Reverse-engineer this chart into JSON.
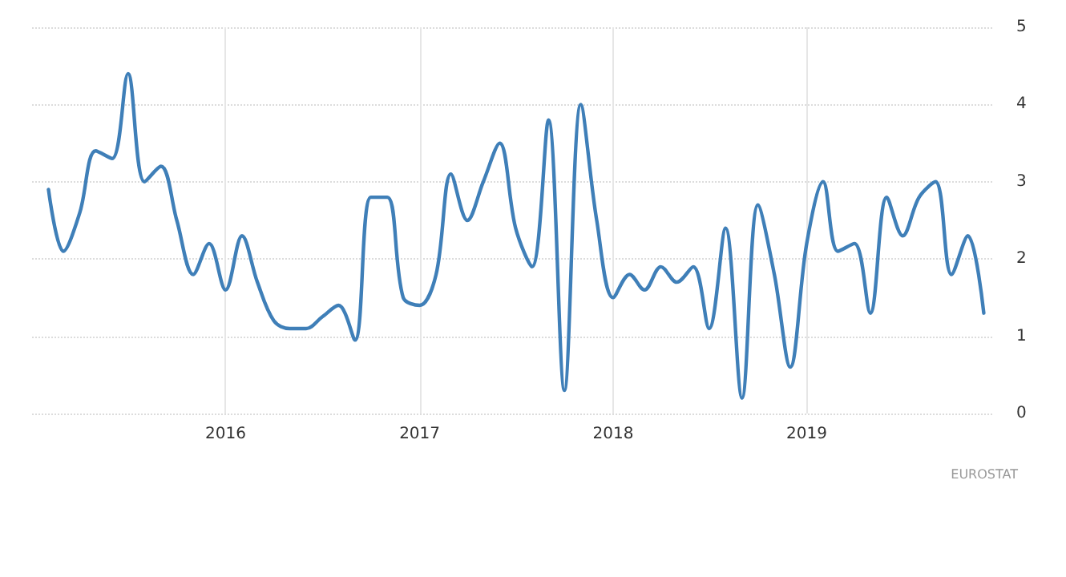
{
  "chart_data": {
    "type": "line",
    "x": [
      "2015-02",
      "2015-03",
      "2015-04",
      "2015-05",
      "2015-06",
      "2015-07",
      "2015-08",
      "2015-09",
      "2015-10",
      "2015-11",
      "2015-12",
      "2016-01",
      "2016-02",
      "2016-03",
      "2016-04",
      "2016-05",
      "2016-06",
      "2016-07",
      "2016-08",
      "2016-09",
      "2016-10",
      "2016-11",
      "2016-12",
      "2017-01",
      "2017-02",
      "2017-03",
      "2017-04",
      "2017-05",
      "2017-06",
      "2017-07",
      "2017-08",
      "2017-09",
      "2017-10",
      "2017-11",
      "2017-12",
      "2018-01",
      "2018-02",
      "2018-03",
      "2018-04",
      "2018-05",
      "2018-06",
      "2018-07",
      "2018-08",
      "2018-09",
      "2018-10",
      "2018-11",
      "2018-12",
      "2019-01",
      "2019-02",
      "2019-03",
      "2019-04",
      "2019-05",
      "2019-06",
      "2019-07",
      "2019-08",
      "2019-09",
      "2019-10",
      "2019-11",
      "2019-12"
    ],
    "series": [
      {
        "color": "#3f7fb8",
        "values": [
          2.9,
          2.1,
          2.6,
          3.4,
          3.3,
          4.4,
          3.0,
          3.2,
          2.5,
          1.8,
          2.2,
          1.6,
          2.3,
          1.7,
          1.2,
          1.1,
          1.1,
          1.25,
          1.4,
          0.95,
          2.8,
          2.8,
          1.5,
          1.4,
          1.8,
          3.1,
          2.5,
          3.0,
          3.5,
          2.4,
          1.9,
          3.8,
          0.3,
          4.0,
          2.5,
          1.5,
          1.8,
          1.6,
          1.9,
          1.7,
          1.9,
          1.1,
          2.4,
          0.2,
          2.7,
          1.8,
          0.6,
          2.2,
          3.0,
          2.1,
          2.2,
          1.3,
          2.8,
          2.3,
          2.8,
          3.0,
          1.8,
          2.3,
          1.3
        ]
      }
    ],
    "xlim": [
      "2015-01-01",
      "2019-12-20"
    ],
    "xticks": [
      {
        "value": "2016-01-01",
        "label": "2016"
      },
      {
        "value": "2017-01-01",
        "label": "2017"
      },
      {
        "value": "2018-01-01",
        "label": "2018"
      },
      {
        "value": "2019-01-01",
        "label": "2019"
      }
    ],
    "ylim": [
      0,
      5
    ],
    "yticks": [
      0,
      1,
      2,
      3,
      4,
      5
    ],
    "grid": true,
    "marker": "none",
    "line_style": "solid",
    "annotations": [
      "EUROSTAT"
    ]
  }
}
